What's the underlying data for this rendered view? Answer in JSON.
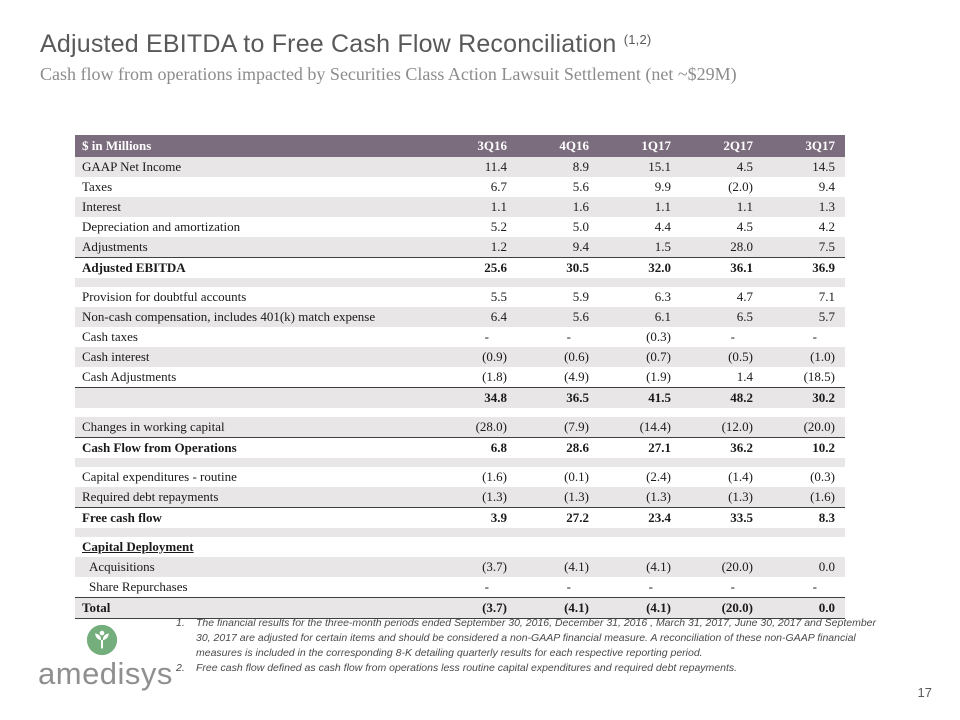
{
  "slide": {
    "title": "Adjusted EBITDA to Free Cash Flow Reconciliation",
    "title_note_ref": "(1,2)",
    "subtitle": "Cash flow from operations impacted by Securities Class Action Lawsuit Settlement (net ~$29M)",
    "page_number": "17"
  },
  "logo": {
    "text": "amedisys",
    "icon": "amedisys-tree-icon"
  },
  "table": {
    "header": [
      "$ in Millions",
      "3Q16",
      "4Q16",
      "1Q17",
      "2Q17",
      "3Q17"
    ],
    "rows": [
      {
        "label": "GAAP Net Income",
        "values": [
          "11.4",
          "8.9",
          "15.1",
          "4.5",
          "14.5"
        ],
        "shaded": true
      },
      {
        "label": "Taxes",
        "values": [
          "6.7",
          "5.6",
          "9.9",
          "(2.0)",
          "9.4"
        ],
        "shaded": false
      },
      {
        "label": "Interest",
        "values": [
          "1.1",
          "1.6",
          "1.1",
          "1.1",
          "1.3"
        ],
        "shaded": true
      },
      {
        "label": "Depreciation and amortization",
        "values": [
          "5.2",
          "5.0",
          "4.4",
          "4.5",
          "4.2"
        ],
        "shaded": false
      },
      {
        "label": "Adjustments",
        "values": [
          "1.2",
          "9.4",
          "1.5",
          "28.0",
          "7.5"
        ],
        "shaded": true,
        "underline": true
      },
      {
        "label": "Adjusted EBITDA",
        "values": [
          "25.6",
          "30.5",
          "32.0",
          "36.1",
          "36.9"
        ],
        "shaded": false,
        "bold": true
      },
      {
        "type": "blank",
        "shaded": true
      },
      {
        "label": "Provision for doubtful accounts",
        "values": [
          "5.5",
          "5.9",
          "6.3",
          "4.7",
          "7.1"
        ],
        "shaded": false
      },
      {
        "label": "Non-cash compensation, includes 401(k) match expense",
        "values": [
          "6.4",
          "5.6",
          "6.1",
          "6.5",
          "5.7"
        ],
        "shaded": true
      },
      {
        "label": "Cash taxes",
        "values": [
          "-",
          "-",
          "(0.3)",
          "-",
          "-"
        ],
        "shaded": false
      },
      {
        "label": "Cash interest",
        "values": [
          "(0.9)",
          "(0.6)",
          "(0.7)",
          "(0.5)",
          "(1.0)"
        ],
        "shaded": true
      },
      {
        "label": "Cash Adjustments",
        "values": [
          "(1.8)",
          "(4.9)",
          "(1.9)",
          "1.4",
          "(18.5)"
        ],
        "shaded": false,
        "underline": true
      },
      {
        "label": "",
        "values": [
          "34.8",
          "36.5",
          "41.5",
          "48.2",
          "30.2"
        ],
        "shaded": true,
        "bold": true
      },
      {
        "type": "blank",
        "shaded": false
      },
      {
        "label": "Changes in working capital",
        "values": [
          "(28.0)",
          "(7.9)",
          "(14.4)",
          "(12.0)",
          "(20.0)"
        ],
        "shaded": true,
        "underline": true
      },
      {
        "label": "Cash Flow from Operations",
        "values": [
          "6.8",
          "28.6",
          "27.1",
          "36.2",
          "10.2"
        ],
        "shaded": false,
        "bold": true
      },
      {
        "type": "blank",
        "shaded": true
      },
      {
        "label": "Capital expenditures - routine",
        "values": [
          "(1.6)",
          "(0.1)",
          "(2.4)",
          "(1.4)",
          "(0.3)"
        ],
        "shaded": false
      },
      {
        "label": "Required debt repayments",
        "values": [
          "(1.3)",
          "(1.3)",
          "(1.3)",
          "(1.3)",
          "(1.6)"
        ],
        "shaded": true,
        "underline": true
      },
      {
        "label": "Free cash flow",
        "values": [
          "3.9",
          "27.2",
          "23.4",
          "33.5",
          "8.3"
        ],
        "shaded": false,
        "bold": true
      },
      {
        "type": "blank",
        "shaded": true
      },
      {
        "label": "Capital Deployment",
        "values": [
          "",
          "",
          "",
          "",
          ""
        ],
        "shaded": false,
        "bold": true,
        "label_underline": true
      },
      {
        "label": "Acquisitions",
        "values": [
          "(3.7)",
          "(4.1)",
          "(4.1)",
          "(20.0)",
          "0.0"
        ],
        "shaded": true,
        "indent": true
      },
      {
        "label": "Share Repurchases",
        "values": [
          "-",
          "-",
          "-",
          "-",
          "-"
        ],
        "shaded": false,
        "indent": true,
        "underline": true
      },
      {
        "label": "Total",
        "values": [
          "(3.7)",
          "(4.1)",
          "(4.1)",
          "(20.0)",
          "0.0"
        ],
        "shaded": true,
        "bold": true,
        "underline": true
      }
    ]
  },
  "footnotes": [
    {
      "num": "1.",
      "text": "The financial results for the three-month periods ended September 30, 2016, December 31, 2016 , March 31, 2017, June 30, 2017 and September 30, 2017 are adjusted for certain items and should be considered a non-GAAP financial measure.  A reconciliation of these non-GAAP financial measures is included in the corresponding 8-K detailing quarterly results for each respective reporting period."
    },
    {
      "num": "2.",
      "text": "Free cash flow defined as cash flow from operations less routine capital expenditures and required debt repayments."
    }
  ],
  "colors": {
    "header_bg": "#7b6c7e",
    "row_shade": "#e8e6e7",
    "title_text": "#595959",
    "subtitle_text": "#8c8c8c",
    "logo_green": "#74ae7c"
  }
}
